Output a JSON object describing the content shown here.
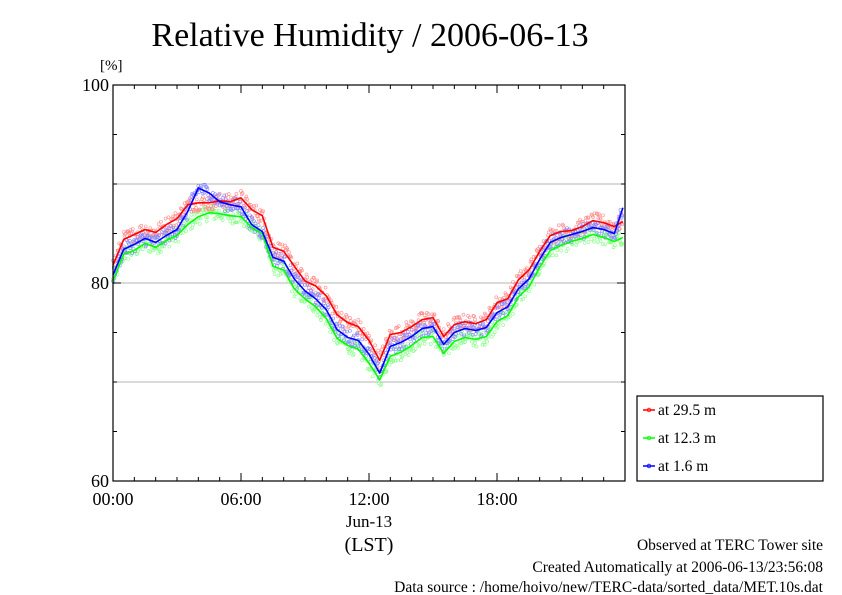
{
  "chart_data": {
    "type": "line",
    "title": "Relative Humidity / 2006-06-13",
    "ylabel": "[%]",
    "xlabel": "(LST)",
    "x_date_label": "Jun-13",
    "ylim": [
      60,
      100
    ],
    "yticks": [
      "60",
      "80",
      "100"
    ],
    "xlim_hours": [
      0,
      24
    ],
    "xticks": [
      "00:00",
      "06:00",
      "12:00",
      "18:00"
    ],
    "grid": true,
    "legend_position": "lower-right outside",
    "series": [
      {
        "name": "at 29.5 m",
        "color": "#ff0000",
        "x_hours": [
          0,
          0.5,
          1,
          1.5,
          2,
          2.5,
          3,
          3.5,
          4,
          4.5,
          5,
          5.5,
          6,
          6.5,
          7,
          7.5,
          8,
          8.5,
          9,
          9.5,
          10,
          10.5,
          11,
          11.5,
          12,
          12.5,
          13,
          13.5,
          14,
          14.5,
          15,
          15.5,
          16,
          16.5,
          17,
          17.5,
          18,
          18.5,
          19,
          19.5,
          20,
          20.5,
          21,
          21.5,
          22,
          22.5,
          23,
          23.5,
          23.9
        ],
        "values": [
          81.8,
          84.4,
          84.9,
          85.4,
          85.1,
          85.9,
          86.5,
          87.9,
          88.1,
          88.1,
          88.3,
          88.2,
          88.6,
          87.4,
          86.8,
          83.6,
          83.2,
          81.7,
          80.2,
          79.7,
          78.7,
          76.8,
          76.0,
          75.6,
          74.2,
          72.2,
          74.8,
          75.0,
          75.6,
          76.3,
          76.5,
          74.6,
          75.8,
          76.1,
          75.9,
          76.3,
          78.0,
          78.4,
          80.3,
          81.3,
          83.2,
          84.8,
          85.2,
          85.3,
          85.7,
          86.3,
          86.1,
          85.7,
          86.2
        ]
      },
      {
        "name": "at 12.3 m",
        "color": "#00ff00",
        "x_hours": [
          0,
          0.5,
          1,
          1.5,
          2,
          2.5,
          3,
          3.5,
          4,
          4.5,
          5,
          5.5,
          6,
          6.5,
          7,
          7.5,
          8,
          8.5,
          9,
          9.5,
          10,
          10.5,
          11,
          11.5,
          12,
          12.5,
          13,
          13.5,
          14,
          14.5,
          15,
          15.5,
          16,
          16.5,
          17,
          17.5,
          18,
          18.5,
          19,
          19.5,
          20,
          20.5,
          21,
          21.5,
          22,
          22.5,
          23,
          23.5,
          23.9
        ],
        "values": [
          80.2,
          82.9,
          83.3,
          84.0,
          83.6,
          84.3,
          84.8,
          85.9,
          86.7,
          87.1,
          87.0,
          86.8,
          86.7,
          85.6,
          85.0,
          81.7,
          81.3,
          79.4,
          78.4,
          77.6,
          76.4,
          74.4,
          73.7,
          73.3,
          71.9,
          70.2,
          72.6,
          73.0,
          73.7,
          74.5,
          74.6,
          72.9,
          74.1,
          74.5,
          74.3,
          74.6,
          76.1,
          76.7,
          78.6,
          79.6,
          81.6,
          83.3,
          83.8,
          84.2,
          84.5,
          84.9,
          84.6,
          84.2,
          84.6
        ]
      },
      {
        "name": "at 1.6 m",
        "color": "#0000ff",
        "x_hours": [
          0,
          0.5,
          1,
          1.5,
          2,
          2.5,
          3,
          3.5,
          4,
          4.5,
          5,
          5.5,
          6,
          6.5,
          7,
          7.5,
          8,
          8.5,
          9,
          9.5,
          10,
          10.5,
          11,
          11.5,
          12,
          12.5,
          13,
          13.5,
          14,
          14.5,
          15,
          15.5,
          16,
          16.5,
          17,
          17.5,
          18,
          18.5,
          19,
          19.5,
          20,
          20.5,
          21,
          21.5,
          22,
          22.5,
          23,
          23.5,
          23.9
        ],
        "values": [
          80.8,
          83.4,
          83.9,
          84.5,
          84.1,
          84.8,
          85.4,
          87.2,
          89.6,
          89.1,
          88.2,
          87.9,
          87.7,
          85.9,
          85.2,
          82.6,
          82.2,
          80.4,
          79.2,
          78.4,
          77.3,
          75.3,
          74.5,
          74.2,
          72.8,
          70.9,
          73.6,
          74.0,
          74.6,
          75.4,
          75.6,
          73.8,
          75.0,
          75.4,
          75.2,
          75.5,
          77.0,
          77.6,
          79.4,
          80.4,
          82.4,
          84.1,
          84.6,
          84.9,
          85.2,
          85.6,
          85.4,
          85.0,
          87.6
        ]
      }
    ]
  },
  "footer": {
    "line1": "Observed at TERC Tower site",
    "line2": "Created Automatically at 2006-06-13/23:56:08",
    "line3": "Data source : /home/hoivo/new/TERC-data/sorted_data/MET.10s.dat"
  }
}
